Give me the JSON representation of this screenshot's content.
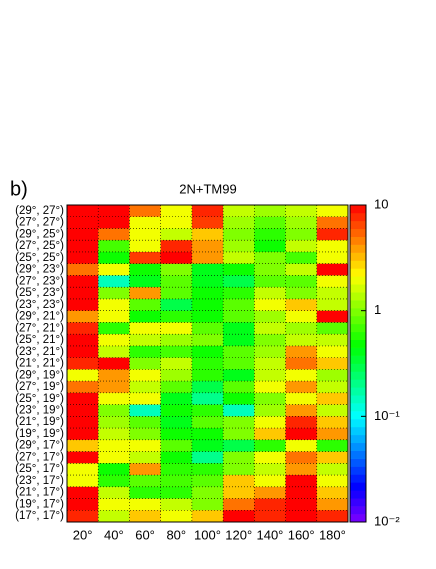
{
  "chart_data": {
    "type": "heatmap",
    "panel_label": "b)",
    "title": "2N+TM99",
    "x": [
      "20°",
      "40°",
      "60°",
      "80°",
      "100°",
      "120°",
      "140°",
      "160°",
      "180°"
    ],
    "y": [
      "(29°, 27°)",
      "(27°, 27°)",
      "(29°, 25°)",
      "(27°, 25°)",
      "(25°, 25°)",
      "(29°, 23°)",
      "(27°, 23°)",
      "(25°, 23°)",
      "(23°, 23°)",
      "(29°, 21°)",
      "(27°, 21°)",
      "(25°, 21°)",
      "(23°, 21°)",
      "(21°, 21°)",
      "(29°, 19°)",
      "(27°, 19°)",
      "(25°, 19°)",
      "(23°, 19°)",
      "(21°, 19°)",
      "(19°, 19°)",
      "(29°, 17°)",
      "(27°, 17°)",
      "(25°, 17°)",
      "(23°, 17°)",
      "(21°, 17°)",
      "(19°, 17°)",
      "(17°, 17°)"
    ],
    "z": [
      [
        10,
        10,
        5,
        2,
        8,
        1.5,
        1.2,
        1.5,
        2
      ],
      [
        10,
        10,
        2,
        2,
        7,
        1.2,
        0.8,
        1.2,
        5
      ],
      [
        10,
        5,
        2,
        1.5,
        3,
        1,
        0.6,
        1,
        8
      ],
      [
        10,
        0.7,
        2,
        8,
        4,
        1.2,
        0.5,
        1.5,
        2
      ],
      [
        10,
        0.5,
        7,
        10,
        4,
        1.5,
        1,
        0.7,
        2
      ],
      [
        5,
        2,
        0.5,
        1,
        0.4,
        0.5,
        1,
        1.5,
        10
      ],
      [
        10,
        0.15,
        0.4,
        0.8,
        0.4,
        0.3,
        0.8,
        0.8,
        2
      ],
      [
        10,
        1,
        4,
        0.8,
        0.5,
        0.6,
        1.5,
        1,
        1.5
      ],
      [
        10,
        2,
        0.8,
        0.3,
        0.5,
        0.8,
        2,
        3,
        1.5
      ],
      [
        4,
        2,
        0.5,
        0.6,
        0.5,
        0.8,
        1.2,
        2,
        10
      ],
      [
        8,
        0.6,
        2,
        2,
        0.8,
        0.4,
        1.5,
        1.2,
        0.8
      ],
      [
        10,
        2,
        1.5,
        1.2,
        1,
        0.4,
        1,
        1.5,
        1.5
      ],
      [
        10,
        1.5,
        0.6,
        0.7,
        0.5,
        0.8,
        1.2,
        4,
        2
      ],
      [
        8,
        10,
        1,
        1.5,
        0.6,
        0.8,
        1.5,
        5,
        3
      ],
      [
        2,
        4,
        2,
        1.2,
        0.6,
        0.4,
        1.5,
        2,
        1.2
      ],
      [
        5,
        4,
        1.5,
        0.8,
        0.3,
        0.8,
        2,
        4,
        1.5
      ],
      [
        10,
        2,
        2,
        0.4,
        0.2,
        0.5,
        1,
        2,
        3
      ],
      [
        10,
        1,
        0.15,
        0.5,
        0.6,
        0.15,
        1.2,
        4,
        1.5
      ],
      [
        10,
        1.2,
        0.8,
        0.4,
        0.8,
        1,
        2,
        8,
        3
      ],
      [
        10,
        1.5,
        1,
        0.5,
        0.5,
        1,
        3,
        10,
        4
      ],
      [
        3,
        2,
        2,
        0.8,
        0.4,
        0.3,
        0.6,
        2,
        0.6
      ],
      [
        10,
        2,
        1.5,
        0.5,
        0.2,
        1,
        2,
        5,
        3
      ],
      [
        2,
        0.5,
        4,
        0.6,
        0.6,
        1,
        1.5,
        4,
        1.5
      ],
      [
        2,
        0.6,
        0.8,
        0.7,
        0.8,
        3,
        2,
        10,
        2
      ],
      [
        10,
        1.5,
        0.6,
        0.6,
        1,
        3,
        4,
        10,
        3
      ],
      [
        10,
        2,
        2,
        1.5,
        1,
        5,
        8,
        10,
        4
      ],
      [
        8,
        1.5,
        3,
        2,
        3,
        10,
        8,
        10,
        8
      ]
    ],
    "zlim": [
      0.01,
      10
    ],
    "zscale": "log",
    "zticks": [
      {
        "value": 10,
        "label": "10"
      },
      {
        "value": 1,
        "label": "1"
      },
      {
        "value": 0.1,
        "label": "10⁻¹"
      },
      {
        "value": 0.01,
        "label": "10⁻²"
      }
    ],
    "grid": true
  }
}
